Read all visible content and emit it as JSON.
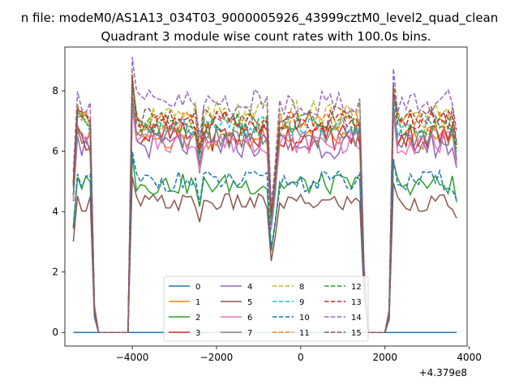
{
  "suptitle": "n file: modeM0/AS1A13_034T03_9000005926_43999cztM0_level2_quad_clean",
  "chart_data": {
    "type": "line",
    "title": "Quadrant 3 module wise count rates with 100.0s bins.",
    "xlabel": "",
    "ylabel": "",
    "x_offset_label": "+4.379e8",
    "xlim": [
      -5600,
      3950
    ],
    "ylim": [
      -0.45,
      9.45
    ],
    "x_ticks": [
      -4000,
      -2000,
      0,
      2000,
      4000
    ],
    "x_tick_labels": [
      "−4000",
      "−2000",
      "0",
      "2000",
      "4000"
    ],
    "y_ticks": [
      0,
      2,
      4,
      6,
      8
    ],
    "y_tick_labels": [
      "0",
      "2",
      "4",
      "6",
      "8"
    ],
    "x_start": -5400,
    "x_step": 100,
    "gaps": [
      [
        -4800,
        -4100
      ],
      [
        1600,
        2000
      ]
    ],
    "grid": false,
    "legend_position": "lower center",
    "series": [
      {
        "name": "0",
        "color": "#1f77b4",
        "dash": "solid",
        "flat": true,
        "base": 0,
        "amp": 0
      },
      {
        "name": "1",
        "color": "#ff7f0e",
        "dash": "solid",
        "base": 6.4,
        "amp": 0.35
      },
      {
        "name": "2",
        "color": "#2ca02c",
        "dash": "solid",
        "base": 4.9,
        "amp": 0.35
      },
      {
        "name": "3",
        "color": "#d62728",
        "dash": "solid",
        "base": 6.5,
        "amp": 0.5
      },
      {
        "name": "4",
        "color": "#9467bd",
        "dash": "solid",
        "base": 6.2,
        "amp": 0.45
      },
      {
        "name": "5",
        "color": "#8c564b",
        "dash": "solid",
        "base": 4.3,
        "amp": 0.3
      },
      {
        "name": "6",
        "color": "#e377c2",
        "dash": "solid",
        "base": 6.3,
        "amp": 0.4
      },
      {
        "name": "7",
        "color": "#7f7f7f",
        "dash": "solid",
        "base": 6.5,
        "amp": 0.4
      },
      {
        "name": "8",
        "color": "#bcbd22",
        "dash": "dashed",
        "base": 7.2,
        "amp": 0.5
      },
      {
        "name": "9",
        "color": "#17becf",
        "dash": "dashed",
        "base": 6.8,
        "amp": 0.35
      },
      {
        "name": "10",
        "color": "#1f77b4",
        "dash": "dashed",
        "base": 5.0,
        "amp": 0.35
      },
      {
        "name": "11",
        "color": "#ff7f0e",
        "dash": "dashed",
        "base": 7.0,
        "amp": 0.35
      },
      {
        "name": "12",
        "color": "#2ca02c",
        "dash": "dashed",
        "base": 6.9,
        "amp": 0.4
      },
      {
        "name": "13",
        "color": "#d62728",
        "dash": "dashed",
        "base": 7.0,
        "amp": 0.4
      },
      {
        "name": "14",
        "color": "#9467bd",
        "dash": "dashed",
        "base": 7.6,
        "amp": 0.45
      },
      {
        "name": "15",
        "color": "#8c564b",
        "dash": "dashed",
        "base": 7.1,
        "amp": 0.4
      }
    ]
  }
}
